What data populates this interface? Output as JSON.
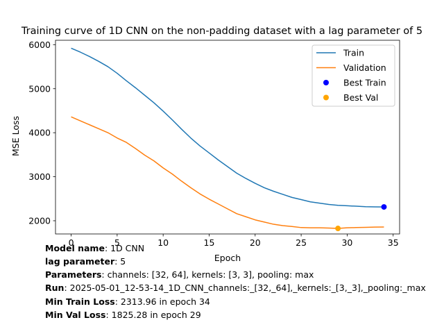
{
  "chart_data": {
    "type": "line",
    "title": "Training curve of 1D CNN on the non-padding dataset with a lag parameter of 5",
    "xlabel": "Epoch",
    "ylabel": "MSE Loss",
    "xlim": [
      -1.7,
      35.7
    ],
    "ylim": [
      1700,
      6100
    ],
    "xticks": [
      0,
      5,
      10,
      15,
      20,
      25,
      30,
      35
    ],
    "yticks": [
      2000,
      3000,
      4000,
      5000,
      6000
    ],
    "grid": false,
    "legend_position": "upper right",
    "series": [
      {
        "name": "Train",
        "color": "#1f77b4",
        "x": [
          0,
          1,
          2,
          3,
          4,
          5,
          6,
          7,
          8,
          9,
          10,
          11,
          12,
          13,
          14,
          15,
          16,
          17,
          18,
          19,
          20,
          21,
          22,
          23,
          24,
          25,
          26,
          27,
          28,
          29,
          30,
          31,
          32,
          33,
          34
        ],
        "values": [
          5920,
          5830,
          5730,
          5620,
          5500,
          5350,
          5180,
          5020,
          4850,
          4680,
          4490,
          4290,
          4080,
          3880,
          3700,
          3540,
          3380,
          3230,
          3080,
          2960,
          2850,
          2750,
          2670,
          2600,
          2530,
          2480,
          2430,
          2400,
          2370,
          2350,
          2340,
          2330,
          2320,
          2315,
          2313.96
        ]
      },
      {
        "name": "Validation",
        "color": "#ff7f0e",
        "x": [
          0,
          1,
          2,
          3,
          4,
          5,
          6,
          7,
          8,
          9,
          10,
          11,
          12,
          13,
          14,
          15,
          16,
          17,
          18,
          19,
          20,
          21,
          22,
          23,
          24,
          25,
          26,
          27,
          28,
          29,
          30,
          31,
          32,
          33,
          34
        ],
        "values": [
          4360,
          4270,
          4180,
          4090,
          4000,
          3880,
          3780,
          3640,
          3490,
          3360,
          3200,
          3060,
          2900,
          2750,
          2610,
          2490,
          2380,
          2270,
          2160,
          2090,
          2020,
          1970,
          1920,
          1890,
          1870,
          1845,
          1840,
          1840,
          1835,
          1825.28,
          1840,
          1845,
          1850,
          1855,
          1858
        ]
      }
    ],
    "markers": [
      {
        "name": "Best Train",
        "color": "#0000ff",
        "x": 34,
        "y": 2313.96
      },
      {
        "name": "Best Val",
        "color": "#ffa500",
        "x": 29,
        "y": 1825.28
      }
    ]
  },
  "info": [
    {
      "key": "Model name",
      "value": ": 1D CNN"
    },
    {
      "key": "lag parameter",
      "value": ": 5"
    },
    {
      "key": "Parameters",
      "value": ": channels: [32, 64], kernels: [3, 3], pooling: max"
    },
    {
      "key": "Run",
      "value": ": 2025-05-01_12-53-14_1D_CNN_channels:_[32,_64],_kernels:_[3,_3],_pooling:_max"
    },
    {
      "key": "Min Train Loss",
      "value": ": 2313.96 in epoch 34"
    },
    {
      "key": "Min Val Loss",
      "value": ": 1825.28 in epoch 29"
    }
  ]
}
